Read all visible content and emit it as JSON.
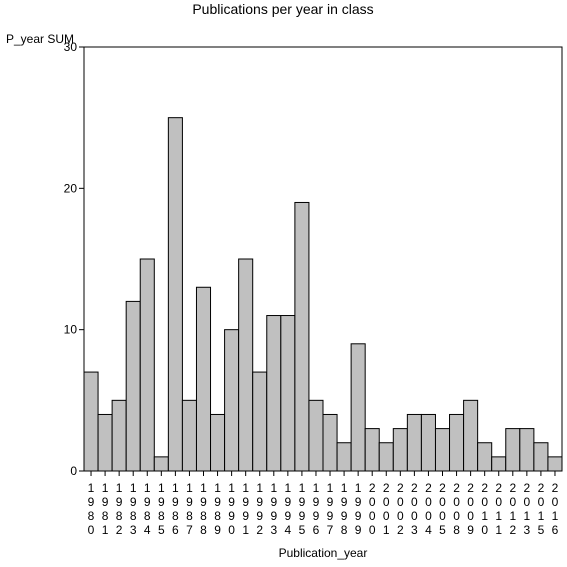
{
  "chart_data": {
    "type": "bar",
    "title": "Publications per year in class",
    "xlabel": "Publication_year",
    "ylabel": "P_year SUM",
    "ylim": [
      0,
      30
    ],
    "yticks": [
      0,
      10,
      20,
      30
    ],
    "grid": false,
    "categories": [
      "1980",
      "1981",
      "1982",
      "1983",
      "1984",
      "1985",
      "1986",
      "1987",
      "1988",
      "1989",
      "1990",
      "1991",
      "1992",
      "1993",
      "1994",
      "1995",
      "1996",
      "1997",
      "1998",
      "1999",
      "2000",
      "2001",
      "2002",
      "2003",
      "2004",
      "2005",
      "2008",
      "2009",
      "2010",
      "2011",
      "2012",
      "2013",
      "2015",
      "2016"
    ],
    "values": [
      7,
      4,
      5,
      12,
      15,
      1,
      25,
      5,
      13,
      4,
      10,
      15,
      7,
      11,
      11,
      19,
      5,
      4,
      2,
      9,
      3,
      2,
      3,
      4,
      4,
      3,
      4,
      5,
      2,
      1,
      3,
      3,
      2,
      1
    ],
    "bar_color": "#c0c0c0",
    "bar_edge_color": "#000000"
  }
}
